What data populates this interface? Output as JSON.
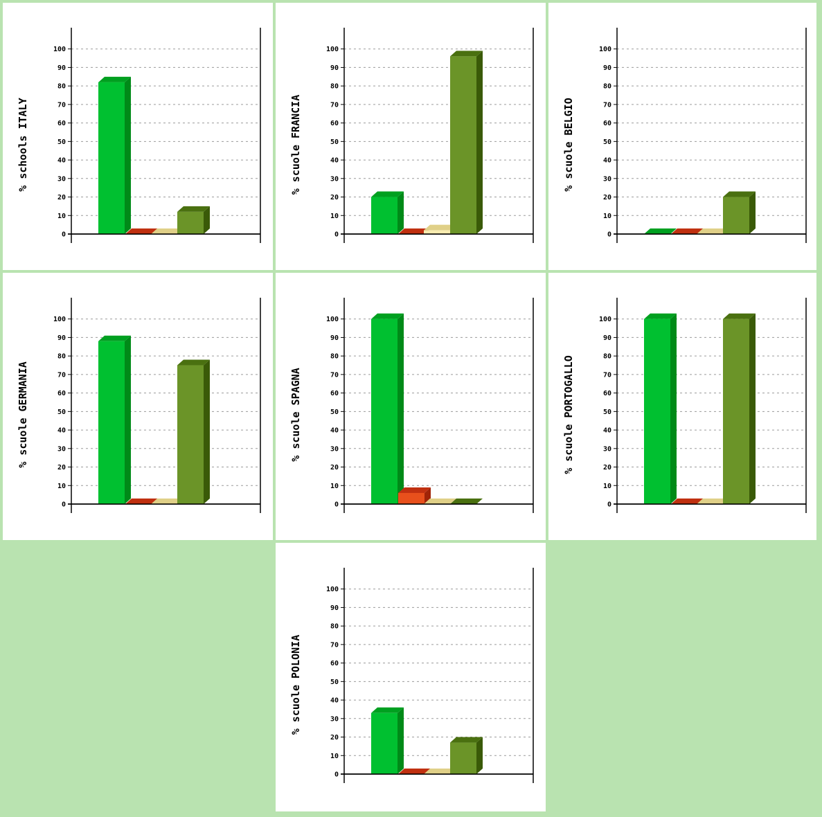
{
  "colors": {
    "page_background": "#b9e3b0",
    "gridline": "#9a9a9a",
    "axis": "#000000",
    "bar_series": [
      {
        "front": "#00c030",
        "top": "#00a020",
        "side": "#008a18"
      },
      {
        "front": "#e8501c",
        "top": "#c03010",
        "side": "#a02408"
      },
      {
        "front": "#f8ecb0",
        "top": "#e0d088",
        "side": "#c8b870"
      },
      {
        "front": "#6b9428",
        "top": "#4a7010",
        "side": "#3a5a08"
      }
    ]
  },
  "chart_data": [
    {
      "type": "bar",
      "ylabel": "% schools ITALY",
      "ylim": [
        0,
        110
      ],
      "yticks": [
        "0",
        "10",
        "20",
        "30",
        "40",
        "50",
        "60",
        "70",
        "80",
        "90",
        "100"
      ],
      "grid": true,
      "values": [
        82,
        0,
        0,
        12
      ]
    },
    {
      "type": "bar",
      "ylabel": "% scuole FRANCIA",
      "ylim": [
        0,
        110
      ],
      "yticks": [
        "0",
        "10",
        "20",
        "30",
        "40",
        "50",
        "60",
        "70",
        "80",
        "90",
        "100"
      ],
      "grid": true,
      "values": [
        20,
        0,
        2,
        96
      ]
    },
    {
      "type": "bar",
      "ylabel": "% scuole BELGIO",
      "ylim": [
        0,
        110
      ],
      "yticks": [
        "0",
        "10",
        "20",
        "30",
        "40",
        "50",
        "60",
        "70",
        "80",
        "90",
        "100"
      ],
      "grid": true,
      "values": [
        0,
        0,
        0,
        20
      ]
    },
    {
      "type": "bar",
      "ylabel": "% scuole GERMANIA",
      "ylim": [
        0,
        110
      ],
      "yticks": [
        "0",
        "10",
        "20",
        "30",
        "40",
        "50",
        "60",
        "70",
        "80",
        "90",
        "100"
      ],
      "grid": true,
      "values": [
        88,
        0,
        0,
        75
      ]
    },
    {
      "type": "bar",
      "ylabel": "% scuole SPAGNA",
      "ylim": [
        0,
        110
      ],
      "yticks": [
        "0",
        "10",
        "20",
        "30",
        "40",
        "50",
        "60",
        "70",
        "80",
        "90",
        "100"
      ],
      "grid": true,
      "values": [
        100,
        6,
        0,
        0
      ]
    },
    {
      "type": "bar",
      "ylabel": "% scuole PORTOGALLO",
      "ylim": [
        0,
        110
      ],
      "yticks": [
        "0",
        "10",
        "20",
        "30",
        "40",
        "50",
        "60",
        "70",
        "80",
        "90",
        "100"
      ],
      "grid": true,
      "values": [
        100,
        0,
        0,
        100
      ]
    },
    {
      "type": "bar",
      "ylabel": "% scuole POLONIA",
      "ylim": [
        0,
        110
      ],
      "yticks": [
        "0",
        "10",
        "20",
        "30",
        "40",
        "50",
        "60",
        "70",
        "80",
        "90",
        "100"
      ],
      "grid": true,
      "values": [
        33,
        0,
        0,
        17
      ]
    }
  ]
}
